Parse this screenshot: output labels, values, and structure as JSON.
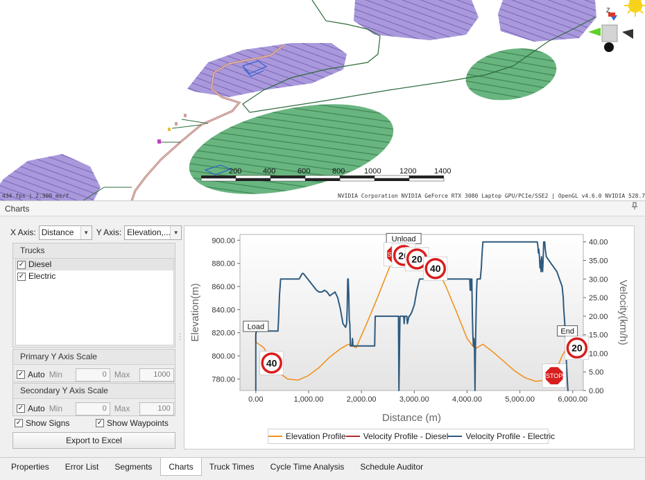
{
  "viewport": {
    "fps_text": "434 fps | 2.300 ms/f",
    "gpu_text": "NVIDIA Corporation NVIDIA GeForce RTX 3080 Laptop GPU/PCIe/SSE2 | OpenGL v4.6.0 NVIDIA 528.79",
    "scale_labels": [
      "200",
      "400",
      "600",
      "800",
      "1000",
      "1200",
      "1400"
    ],
    "nav_axis_label": "Z"
  },
  "panel": {
    "title": "Charts",
    "pin_icon": "pin-icon"
  },
  "axis_selectors": {
    "x_label": "X Axis:",
    "x_value": "Distance",
    "y_label": "Y Axis:",
    "y_value": "Elevation,..."
  },
  "trucks": {
    "title": "Trucks",
    "items": [
      {
        "label": "Diesel",
        "checked": true
      },
      {
        "label": "Electric",
        "checked": true
      }
    ]
  },
  "primary_scale": {
    "title": "Primary Y Axis Scale",
    "auto_label": "Auto",
    "min_label": "Min",
    "min_value": "0",
    "max_label": "Max",
    "max_value": "1000"
  },
  "secondary_scale": {
    "title": "Secondary Y Axis Scale",
    "auto_label": "Auto",
    "min_label": "Min",
    "min_value": "0",
    "max_label": "Max",
    "max_value": "100"
  },
  "options": {
    "show_signs": "Show Signs",
    "show_waypoints": "Show Waypoints",
    "export_button": "Export to Excel"
  },
  "chart_data": {
    "type": "line",
    "title": "",
    "xlabel": "Distance (m)",
    "ylabel": "Elevation(m)",
    "y2label": "Velocity(km/h)",
    "xlim": [
      -300,
      6200
    ],
    "ylim": [
      770,
      905
    ],
    "y2lim": [
      0,
      42
    ],
    "x_ticks": [
      "0.00",
      "1,000.00",
      "2,000.00",
      "3,000.00",
      "4,000.00",
      "5,000.00",
      "6,000.00"
    ],
    "y_ticks": [
      "780.00",
      "800.00",
      "820.00",
      "840.00",
      "860.00",
      "880.00",
      "900.00"
    ],
    "y2_ticks": [
      "0.00",
      "5.00",
      "10.00",
      "15.00",
      "20.00",
      "25.00",
      "30.00",
      "35.00",
      "40.00"
    ],
    "grid": false,
    "legend_position": "bottom",
    "colors": {
      "elevation": "#f0921e",
      "diesel": "#b32b2b",
      "electric": "#2e5a7e"
    },
    "series": [
      {
        "name": "Elevation Profile",
        "axis": "primary",
        "x": [
          0,
          150,
          300,
          450,
          600,
          800,
          1000,
          1200,
          1400,
          1600,
          1750,
          1900,
          2100,
          2300,
          2500,
          2650,
          2700,
          2800,
          2900,
          3000,
          3100,
          3300,
          3450,
          3600,
          3800,
          4000,
          4150,
          4300,
          4500,
          4700,
          4900,
          5100,
          5300,
          5500,
          5650,
          5800,
          5900
        ],
        "values": [
          812,
          807,
          795,
          785,
          780,
          779,
          783,
          790,
          799,
          806,
          810,
          807,
          828,
          850,
          873,
          889,
          890,
          888,
          886,
          886,
          884,
          882,
          874,
          860,
          838,
          815,
          806,
          810,
          803,
          795,
          787,
          781,
          778,
          779,
          784,
          800,
          808
        ]
      },
      {
        "name": "Velocity Profile - Diesel",
        "axis": "secondary",
        "x": [],
        "values": []
      },
      {
        "name": "Velocity Profile - Electric",
        "axis": "secondary",
        "x": [
          0,
          0,
          5,
          15,
          30,
          50,
          60,
          420,
          430,
          440,
          450,
          460,
          470,
          490,
          500,
          820,
          840,
          860,
          880,
          900,
          1150,
          1200,
          1250,
          1300,
          1350,
          1400,
          1450,
          1500,
          1550,
          1600,
          1650,
          1700,
          1720,
          1730,
          1740,
          1750,
          1760,
          1770,
          1780,
          1790,
          1800,
          1820,
          1830,
          1840,
          1850,
          1900,
          2200,
          2250,
          2260,
          2300,
          2700,
          2710,
          2730,
          2800,
          2810,
          2820,
          2860,
          2870,
          2900,
          2910,
          2950,
          3000,
          3050,
          3100,
          3200,
          3300,
          3350,
          3400,
          3500,
          3600,
          3700,
          3800,
          3900,
          4050,
          4060,
          4070,
          4080,
          4090,
          4100,
          4110,
          4120,
          4130,
          4140,
          4150,
          4160,
          4170,
          4180,
          4190,
          4200,
          4220,
          4250,
          4270,
          4280,
          4290,
          4300,
          4310,
          4320,
          4900,
          4950,
          5000,
          5050,
          5100,
          5200,
          5250,
          5300,
          5320,
          5330,
          5340,
          5350,
          5360,
          5370,
          5380,
          5390,
          5400,
          5410,
          5420,
          5430,
          5440,
          5450,
          5460,
          5470,
          5480,
          5500,
          5550,
          5600,
          5700,
          5750,
          5800,
          5820,
          5830,
          5840,
          5850,
          5860,
          5870,
          5880,
          5890,
          5900,
          5910,
          5920
        ],
        "values": [
          0,
          15,
          15.5,
          16,
          16,
          16,
          16,
          16,
          19,
          23,
          26,
          28,
          30,
          30,
          30,
          30,
          30.5,
          31,
          31.5,
          31.5,
          27,
          26.5,
          26.5,
          27,
          26.5,
          25.5,
          26,
          26.5,
          25,
          22,
          18,
          17,
          18,
          22,
          30,
          30,
          26,
          19,
          18,
          12,
          12,
          12,
          14,
          12,
          12,
          12,
          12,
          12,
          20,
          20,
          20,
          0,
          20,
          20,
          18,
          20,
          20,
          18,
          20,
          20,
          21,
          23,
          27,
          30,
          30,
          30,
          30,
          30,
          30,
          30,
          30,
          30,
          30,
          30,
          27,
          30,
          27,
          30,
          20,
          15,
          12,
          14,
          12,
          0,
          12,
          20,
          27,
          30,
          30,
          30,
          30,
          33,
          36,
          38,
          40,
          40,
          40,
          40,
          40,
          40,
          40,
          40,
          40,
          40,
          40,
          40,
          40,
          39,
          37,
          38,
          36,
          33,
          35,
          32,
          36,
          34,
          32,
          35,
          40,
          40,
          40,
          38,
          36,
          35,
          34,
          32,
          30,
          28,
          25,
          22,
          20,
          18,
          15,
          12,
          8,
          5,
          2,
          0,
          0
        ]
      }
    ],
    "annotations": [
      {
        "label": "Load",
        "x": 0
      },
      {
        "label": "Unload",
        "x": 2800
      },
      {
        "label": "End",
        "x": 5900
      }
    ],
    "signs": [
      {
        "type": "speed-limit",
        "text": "40",
        "x": 300
      },
      {
        "type": "stop",
        "text": "STOP",
        "x": 2650
      },
      {
        "type": "speed-limit",
        "text": "20",
        "x": 2800
      },
      {
        "type": "speed-limit",
        "text": "20",
        "x": 3050
      },
      {
        "type": "speed-limit",
        "text": "40",
        "x": 3400
      },
      {
        "type": "stop",
        "text": "STOP",
        "x": 5650
      },
      {
        "type": "speed-limit",
        "text": "20",
        "x": 6080
      }
    ]
  },
  "bottom_tabs": [
    {
      "label": "Properties",
      "active": false
    },
    {
      "label": "Error List",
      "active": false
    },
    {
      "label": "Segments",
      "active": false
    },
    {
      "label": "Charts",
      "active": true
    },
    {
      "label": "Truck Times",
      "active": false
    },
    {
      "label": "Cycle Time Analysis",
      "active": false
    },
    {
      "label": "Schedule Auditor",
      "active": false
    }
  ]
}
